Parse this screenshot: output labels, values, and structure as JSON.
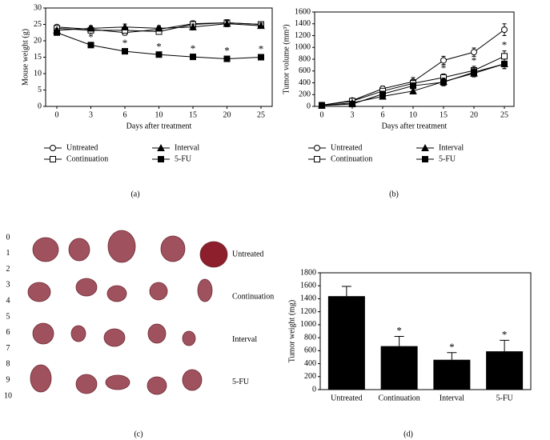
{
  "chart_data": [
    {
      "type": "line",
      "xlabel": "Days after treatment",
      "ylabel": "Mouse weight (g)",
      "categories": [
        "0",
        "3",
        "6",
        "10",
        "15",
        "20",
        "25"
      ],
      "ylim": [
        0,
        30
      ],
      "yticks": [
        0,
        5,
        10,
        15,
        20,
        25,
        30
      ],
      "series": [
        {
          "name": "Untreated",
          "color": "#000",
          "marker": "circle-open",
          "values": [
            24.2,
            23.5,
            22.5,
            23.5,
            25.2,
            25.5,
            25.0
          ],
          "errors": [
            0.6,
            0.8,
            0.8,
            0.8,
            0.9,
            0.9,
            0.8
          ]
        },
        {
          "name": "Continuation",
          "color": "#000",
          "marker": "square-open",
          "values": [
            23.8,
            23.2,
            23.2,
            22.8,
            25.0,
            25.5,
            25.0
          ],
          "errors": [
            0.6,
            0.8,
            0.8,
            0.8,
            0.9,
            0.9,
            0.8
          ]
        },
        {
          "name": "Interval",
          "color": "#000",
          "marker": "triangle-filled",
          "values": [
            23.2,
            23.8,
            24.2,
            23.8,
            24.2,
            25.2,
            24.6
          ],
          "errors": [
            0.6,
            0.8,
            0.9,
            0.8,
            0.9,
            0.9,
            0.8
          ]
        },
        {
          "name": "5-FU",
          "color": "#000",
          "marker": "square-filled",
          "values": [
            22.5,
            18.7,
            16.8,
            15.8,
            15.1,
            14.5,
            15.0
          ],
          "errors": [
            0.6,
            0.7,
            0.7,
            0.7,
            0.8,
            0.7,
            0.7
          ],
          "significance": [
            null,
            "*",
            "*",
            "*",
            "*",
            "*",
            "*"
          ]
        }
      ],
      "panel": "(a)"
    },
    {
      "type": "line",
      "xlabel": "Days after treatment",
      "ylabel": "Tumor volume (mm³)",
      "categories": [
        "0",
        "3",
        "6",
        "10",
        "15",
        "20",
        "25"
      ],
      "ylim": [
        0,
        1600
      ],
      "yticks": [
        0,
        200,
        400,
        600,
        800,
        1000,
        1200,
        1400,
        1600
      ],
      "series": [
        {
          "name": "Untreated",
          "color": "#000",
          "marker": "circle-open",
          "values": [
            20,
            100,
            300,
            420,
            780,
            920,
            1300
          ],
          "errors": [
            10,
            25,
            45,
            70,
            70,
            70,
            100
          ]
        },
        {
          "name": "Continuation",
          "color": "#000",
          "marker": "square-open",
          "values": [
            20,
            90,
            260,
            390,
            490,
            610,
            850
          ],
          "errors": [
            10,
            25,
            40,
            60,
            60,
            70,
            90
          ],
          "significance": [
            null,
            null,
            null,
            null,
            "*",
            "*",
            "*"
          ]
        },
        {
          "name": "Interval",
          "color": "#000",
          "marker": "triangle-filled",
          "values": [
            15,
            60,
            170,
            260,
            420,
            560,
            720
          ],
          "errors": [
            10,
            20,
            40,
            50,
            60,
            60,
            80
          ]
        },
        {
          "name": "5-FU",
          "color": "#000",
          "marker": "square-filled",
          "values": [
            15,
            40,
            210,
            350,
            410,
            580,
            720
          ],
          "errors": [
            10,
            20,
            40,
            50,
            60,
            60,
            80
          ]
        }
      ],
      "panel": "(b)"
    },
    {
      "type": "bar",
      "ylabel": "Tumor weight (mg)",
      "categories": [
        "Untreated",
        "Continuation",
        "Interval",
        "5-FU"
      ],
      "values": [
        1440,
        670,
        460,
        590
      ],
      "errors": [
        150,
        150,
        110,
        170
      ],
      "significance": [
        null,
        "*",
        "*",
        "*"
      ],
      "color": "#000",
      "ylim": [
        0,
        1800
      ],
      "yticks": [
        0,
        200,
        400,
        600,
        800,
        1000,
        1200,
        1400,
        1600,
        1800
      ],
      "panel": "(d)"
    }
  ],
  "photo": {
    "ruler": [
      "0",
      "1",
      "2",
      "3",
      "4",
      "5",
      "6",
      "7",
      "8",
      "9",
      "10"
    ],
    "groups": [
      "Untreated",
      "Continuation",
      "Interval",
      "5-FU"
    ],
    "panel": "(c)"
  }
}
